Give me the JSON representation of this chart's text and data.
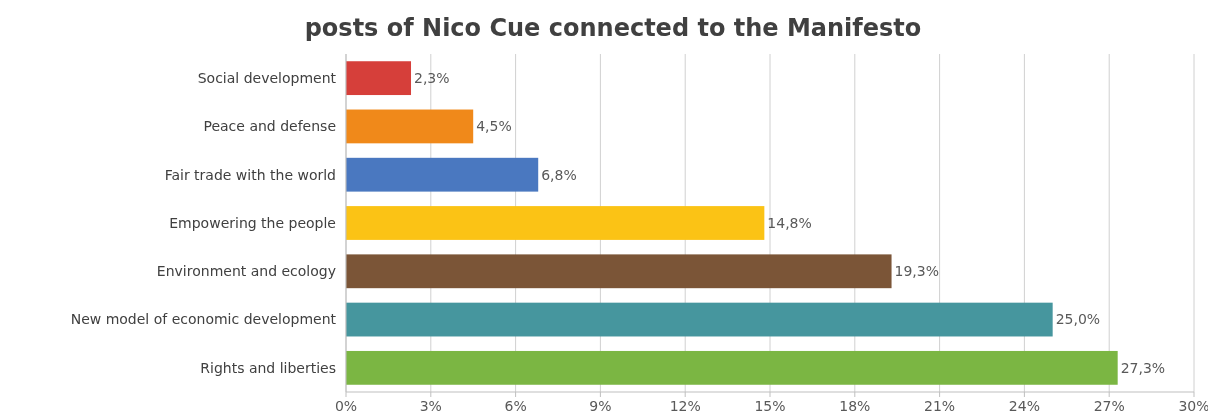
{
  "chart_data": {
    "type": "bar",
    "orientation": "horizontal",
    "title": "posts of Nico Cue connected to the Manifesto",
    "categories": [
      "Social development",
      "Peace and defense",
      "Fair trade with the world",
      "Empowering the people",
      "Environment and ecology",
      "New model of economic development",
      "Rights and liberties"
    ],
    "values": [
      2.3,
      4.5,
      6.8,
      14.8,
      19.3,
      25.0,
      27.3
    ],
    "colors": [
      "#d63f3a",
      "#f0891a",
      "#4a78c0",
      "#fbc315",
      "#7b5537",
      "#46969e",
      "#7bb643"
    ],
    "value_labels": [
      "2,3%",
      "4,5%",
      "6,8%",
      "14,8%",
      "19,3%",
      "25,0%",
      "27,3%"
    ],
    "xlim": [
      0,
      30
    ],
    "xticks": [
      {
        "value": 0,
        "label": "0%"
      },
      {
        "value": 3,
        "label": "3%"
      },
      {
        "value": 6,
        "label": "6%"
      },
      {
        "value": 9,
        "label": "9%"
      },
      {
        "value": 12,
        "label": "12%"
      },
      {
        "value": 15,
        "label": "15%"
      },
      {
        "value": 18,
        "label": "18%"
      },
      {
        "value": 21,
        "label": "21%"
      },
      {
        "value": 24,
        "label": "24%"
      },
      {
        "value": 27,
        "label": "27%"
      },
      {
        "value": 30,
        "label": "30%"
      }
    ],
    "grid": "x"
  }
}
